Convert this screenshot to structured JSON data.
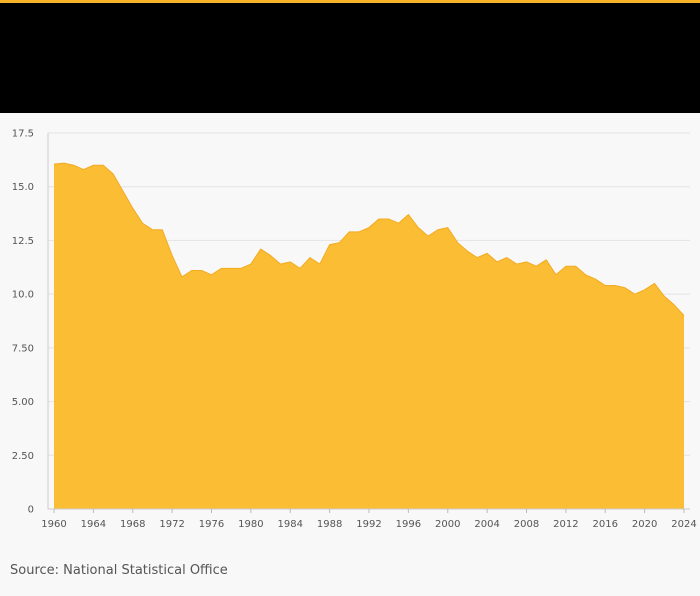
{
  "colors": {
    "accent": "#f7b329",
    "header": "#000000",
    "area_fill": "#fbbd34",
    "area_stroke": "#f2ab22",
    "grid": "#e3e3e3"
  },
  "chart_data": {
    "type": "area",
    "title": "",
    "xlabel": "",
    "ylabel": "",
    "xlim": [
      1960,
      2024
    ],
    "ylim": [
      0,
      17.5
    ],
    "grid": true,
    "legend": "none",
    "x_ticks": [
      "1960",
      "1964",
      "1968",
      "1972",
      "1976",
      "1980",
      "1984",
      "1988",
      "1992",
      "1996",
      "2000",
      "2004",
      "2008",
      "2012",
      "2016",
      "2020",
      "2024"
    ],
    "y_ticks": [
      {
        "value": 0,
        "label": "0"
      },
      {
        "value": 2.5,
        "label": "2.50"
      },
      {
        "value": 5,
        "label": "5.00"
      },
      {
        "value": 7.5,
        "label": "7.50"
      },
      {
        "value": 10,
        "label": "10.0"
      },
      {
        "value": 12.5,
        "label": "12.5"
      },
      {
        "value": 15,
        "label": "15.0"
      },
      {
        "value": 17.5,
        "label": "17.5"
      }
    ],
    "x": [
      1960,
      1961,
      1962,
      1963,
      1964,
      1965,
      1966,
      1967,
      1968,
      1969,
      1970,
      1971,
      1972,
      1973,
      1974,
      1975,
      1976,
      1977,
      1978,
      1979,
      1980,
      1981,
      1982,
      1983,
      1984,
      1985,
      1986,
      1987,
      1988,
      1989,
      1990,
      1991,
      1992,
      1993,
      1994,
      1995,
      1996,
      1997,
      1998,
      1999,
      2000,
      2001,
      2002,
      2003,
      2004,
      2005,
      2006,
      2007,
      2008,
      2009,
      2010,
      2011,
      2012,
      2013,
      2014,
      2015,
      2016,
      2017,
      2018,
      2019,
      2020,
      2021,
      2022,
      2023,
      2024
    ],
    "values": [
      16.05,
      16.1,
      16.0,
      15.8,
      16.0,
      16.0,
      15.6,
      14.8,
      14.0,
      13.3,
      13.0,
      13.0,
      11.8,
      10.8,
      11.1,
      11.1,
      10.9,
      11.2,
      11.2,
      11.2,
      11.4,
      12.1,
      11.8,
      11.4,
      11.5,
      11.2,
      11.7,
      11.4,
      12.3,
      12.4,
      12.9,
      12.9,
      13.1,
      13.5,
      13.5,
      13.3,
      13.7,
      13.1,
      12.7,
      13.0,
      13.1,
      12.4,
      12.0,
      11.7,
      11.9,
      11.5,
      11.7,
      11.4,
      11.5,
      11.3,
      11.6,
      10.9,
      11.3,
      11.3,
      10.9,
      10.7,
      10.4,
      10.4,
      10.3,
      10.0,
      10.2,
      10.5,
      9.9,
      9.5,
      9.0
    ]
  },
  "source": "Source: National Statistical Office"
}
